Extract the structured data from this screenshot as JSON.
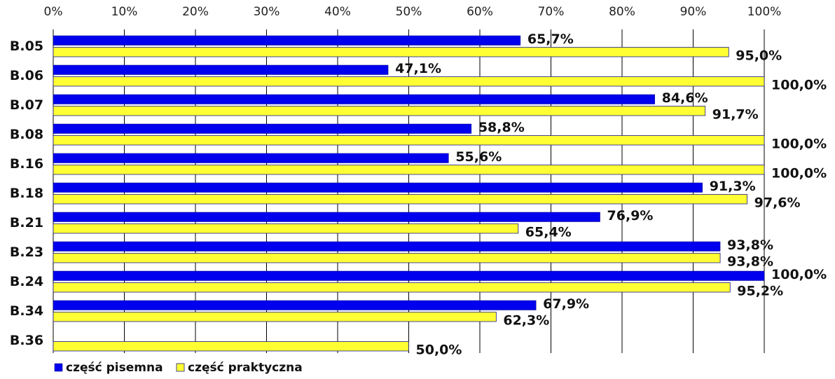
{
  "chart_data": {
    "type": "bar",
    "orientation": "horizontal",
    "categories": [
      "B.05",
      "B.06",
      "B.07",
      "B.08",
      "B.16",
      "B.18",
      "B.21",
      "B.23",
      "B.24",
      "B.34",
      "B.36"
    ],
    "series": [
      {
        "name": "część pisemna",
        "color": "#0000EE",
        "values": [
          65.7,
          47.1,
          84.6,
          58.8,
          55.6,
          91.3,
          76.9,
          93.8,
          100.0,
          67.9,
          null
        ],
        "labels": [
          "65,7%",
          "47,1%",
          "84,6%",
          "58,8%",
          "55,6%",
          "91,3%",
          "76,9%",
          "93,8%",
          "100,0%",
          "67,9%",
          ""
        ]
      },
      {
        "name": "część praktyczna",
        "color": "#FFFF33",
        "values": [
          95.0,
          100.0,
          91.7,
          100.0,
          100.0,
          97.6,
          65.4,
          93.8,
          95.2,
          62.3,
          50.0
        ],
        "labels": [
          "95,0%",
          "100,0%",
          "91,7%",
          "100,0%",
          "100,0%",
          "97,6%",
          "65,4%",
          "93,8%",
          "95,2%",
          "62,3%",
          "50,0%"
        ]
      }
    ],
    "xlim": [
      0,
      100
    ],
    "x_ticks": [
      "0%",
      "10%",
      "20%",
      "30%",
      "40%",
      "50%",
      "60%",
      "70%",
      "80%",
      "90%",
      "100%"
    ],
    "x_axis_position": "top",
    "grid": true,
    "legend_position": "bottom-left",
    "title": "",
    "xlabel": "",
    "ylabel": ""
  }
}
